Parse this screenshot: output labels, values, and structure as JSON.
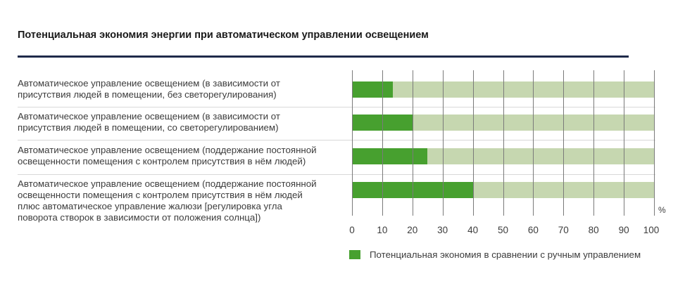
{
  "chart_data": {
    "type": "bar",
    "orientation": "horizontal",
    "title": "Потенциальная экономия энергии при автоматическом управлении освещением",
    "categories": [
      [
        "Автоматическое управление освещением (в зависимости от",
        "присутствия людей в помещении, без светорегулирования)"
      ],
      [
        "Автоматическое управление освещением (в зависимости от",
        "присутствия людей в помещении, со светорегулированием)"
      ],
      [
        "Автоматическое управление освещением (поддержание постоянной",
        "освещенности помещения с контролем присутствия в нём людей)"
      ],
      [
        "Автоматическое управление освещением (поддержание постоянной",
        "освещенности помещения с контролем присутствия в нём людей",
        "плюс автоматическое управление жалюзи [регулировка угла",
        "поворота створок в зависимости от положения солнца])"
      ]
    ],
    "series": [
      {
        "name": "Потенциальная экономия в сравнении с ручным управлением",
        "values": [
          13.5,
          20,
          25,
          40
        ],
        "color": "#47a02f"
      }
    ],
    "background_color": "#c6d7b0",
    "xlim": [
      0,
      100
    ],
    "xticks": [
      "0",
      "10",
      "20",
      "30",
      "40",
      "50",
      "60",
      "70",
      "80",
      "90",
      "100"
    ],
    "xunit": "%",
    "grid": true,
    "legend_position": "bottom-right"
  }
}
